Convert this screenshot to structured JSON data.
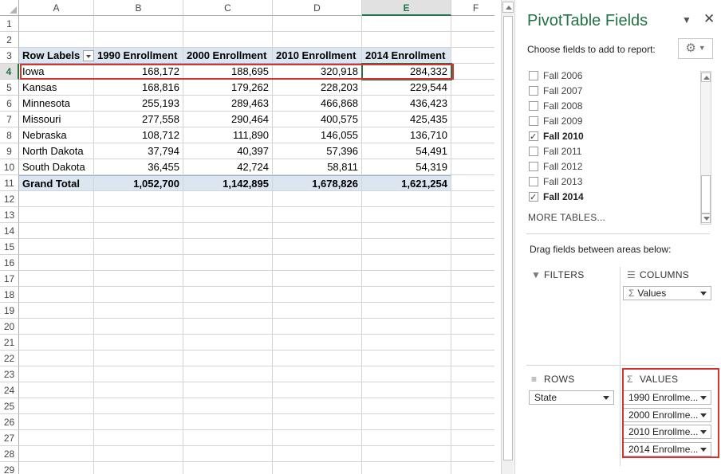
{
  "sheet": {
    "columns": [
      "A",
      "B",
      "C",
      "D",
      "E",
      "F"
    ],
    "selected_column": "E",
    "rows": [
      "1",
      "2",
      "3",
      "4",
      "5",
      "6",
      "7",
      "8",
      "9",
      "10",
      "11",
      "12",
      "13",
      "14",
      "15",
      "16",
      "17",
      "18",
      "19",
      "20",
      "21",
      "22",
      "23",
      "24",
      "25",
      "26",
      "27",
      "28",
      "29"
    ],
    "selected_row": "4",
    "pivot": {
      "row_labels_header": "Row Labels",
      "headers": [
        "1990 Enrollment",
        "2000 Enrollment",
        "2010 Enrollment",
        "2014 Enrollment"
      ],
      "rows": [
        {
          "state": "Iowa",
          "values": [
            "168,172",
            "188,695",
            "320,918",
            "284,332"
          ]
        },
        {
          "state": "Kansas",
          "values": [
            "168,816",
            "179,262",
            "228,203",
            "229,544"
          ]
        },
        {
          "state": "Minnesota",
          "values": [
            "255,193",
            "289,463",
            "466,868",
            "436,423"
          ]
        },
        {
          "state": "Missouri",
          "values": [
            "277,558",
            "290,464",
            "400,575",
            "425,435"
          ]
        },
        {
          "state": "Nebraska",
          "values": [
            "108,712",
            "111,890",
            "146,055",
            "136,710"
          ]
        },
        {
          "state": "North Dakota",
          "values": [
            "37,794",
            "40,397",
            "57,396",
            "54,491"
          ]
        },
        {
          "state": "South Dakota",
          "values": [
            "36,455",
            "42,724",
            "58,811",
            "54,319"
          ]
        }
      ],
      "total": {
        "label": "Grand Total",
        "values": [
          "1,052,700",
          "1,142,895",
          "1,678,826",
          "1,621,254"
        ]
      }
    }
  },
  "pane": {
    "title": "PivotTable Fields",
    "dropdown_icon": "chevron-down-icon",
    "close_icon": "close-icon",
    "choose_label": "Choose fields to add to report:",
    "gear_icon": "gear-icon",
    "fields": [
      {
        "label": "Fall 2006",
        "checked": false
      },
      {
        "label": "Fall 2007",
        "checked": false
      },
      {
        "label": "Fall 2008",
        "checked": false
      },
      {
        "label": "Fall 2009",
        "checked": false
      },
      {
        "label": "Fall 2010",
        "checked": true
      },
      {
        "label": "Fall 2011",
        "checked": false
      },
      {
        "label": "Fall 2012",
        "checked": false
      },
      {
        "label": "Fall 2013",
        "checked": false
      },
      {
        "label": "Fall 2014",
        "checked": true
      }
    ],
    "more_tables": "MORE TABLES...",
    "drag_label": "Drag fields between areas below:",
    "areas": {
      "filters": {
        "label": "FILTERS"
      },
      "columns": {
        "label": "COLUMNS",
        "items": [
          "Values"
        ]
      },
      "rows": {
        "label": "ROWS",
        "items": [
          "State"
        ]
      },
      "values": {
        "label": "VALUES",
        "items": [
          "1990 Enrollme...",
          "2000 Enrollme...",
          "2010 Enrollme...",
          "2014 Enrollme..."
        ]
      }
    }
  },
  "colors": {
    "accent_green": "#217346",
    "highlight_red": "#d9332e",
    "pivot_header_blue": "#dce6f1"
  }
}
